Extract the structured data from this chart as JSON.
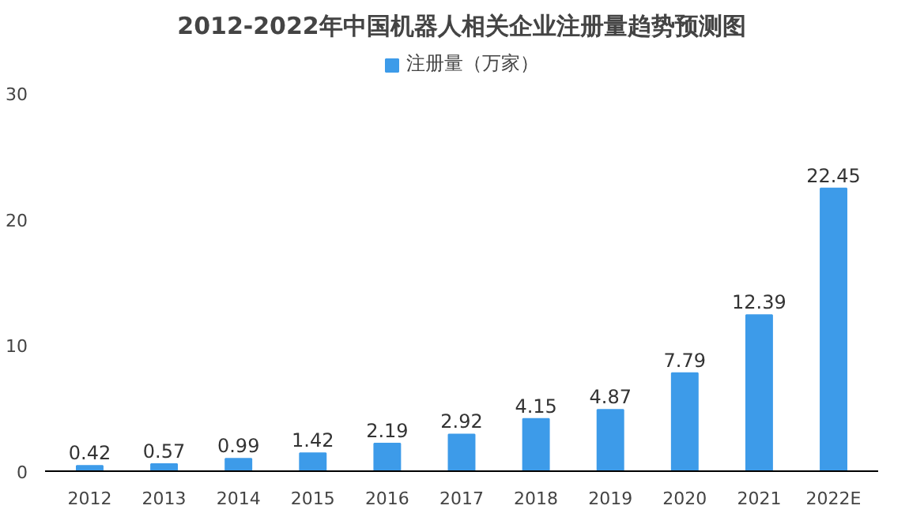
{
  "chart_data": {
    "type": "bar",
    "title": "2012-2022年中国机器人相关企业注册量趋势预测图",
    "categories": [
      "2012",
      "2013",
      "2014",
      "2015",
      "2016",
      "2017",
      "2018",
      "2019",
      "2020",
      "2021",
      "2022E"
    ],
    "series": [
      {
        "name": "注册量（万家）",
        "color": "#3d9be9",
        "values": [
          0.42,
          0.57,
          0.99,
          1.42,
          2.19,
          2.92,
          4.15,
          4.87,
          7.79,
          12.39,
          22.45
        ]
      }
    ],
    "ylim": [
      0,
      30
    ],
    "yticks": [
      0,
      10,
      20,
      30
    ],
    "grid": false,
    "legend": "top",
    "data_labels": true
  }
}
